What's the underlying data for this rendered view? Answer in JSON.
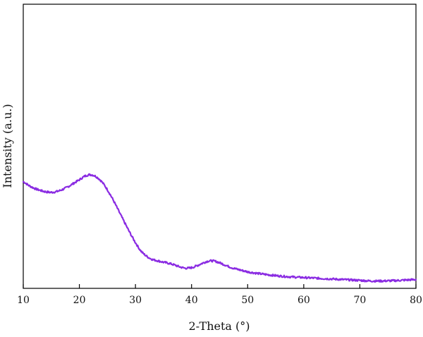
{
  "chart_data": {
    "type": "line",
    "title": "",
    "xlabel": "2-Theta (°)",
    "ylabel": "Intensity (a.u.)",
    "xlim": [
      10,
      80
    ],
    "ylim": [
      0,
      1
    ],
    "x_ticks": [
      10,
      20,
      30,
      40,
      50,
      60,
      70,
      80
    ],
    "y_ticks_shown": false,
    "grid": false,
    "legend": "none",
    "series": [
      {
        "color": "#8a2be2",
        "x": [
          10,
          11,
          12,
          13,
          14,
          15,
          16,
          17,
          18,
          19,
          20,
          21,
          22,
          23,
          24,
          25,
          26,
          27,
          28,
          29,
          30,
          31,
          32,
          33,
          34,
          35,
          36,
          37,
          38,
          39,
          40,
          41,
          42,
          43,
          44,
          45,
          46,
          47,
          48,
          49,
          50,
          52,
          54,
          56,
          58,
          60,
          62,
          64,
          66,
          68,
          70,
          72,
          74,
          76,
          78,
          80
        ],
        "y": [
          0.375,
          0.362,
          0.352,
          0.345,
          0.34,
          0.338,
          0.341,
          0.348,
          0.358,
          0.37,
          0.382,
          0.395,
          0.4,
          0.393,
          0.375,
          0.347,
          0.312,
          0.273,
          0.234,
          0.196,
          0.161,
          0.131,
          0.113,
          0.102,
          0.097,
          0.092,
          0.088,
          0.082,
          0.075,
          0.071,
          0.073,
          0.08,
          0.089,
          0.096,
          0.096,
          0.09,
          0.082,
          0.074,
          0.068,
          0.063,
          0.058,
          0.052,
          0.047,
          0.043,
          0.04,
          0.038,
          0.036,
          0.034,
          0.032,
          0.03,
          0.028,
          0.026,
          0.026,
          0.027,
          0.029,
          0.031
        ]
      }
    ]
  }
}
